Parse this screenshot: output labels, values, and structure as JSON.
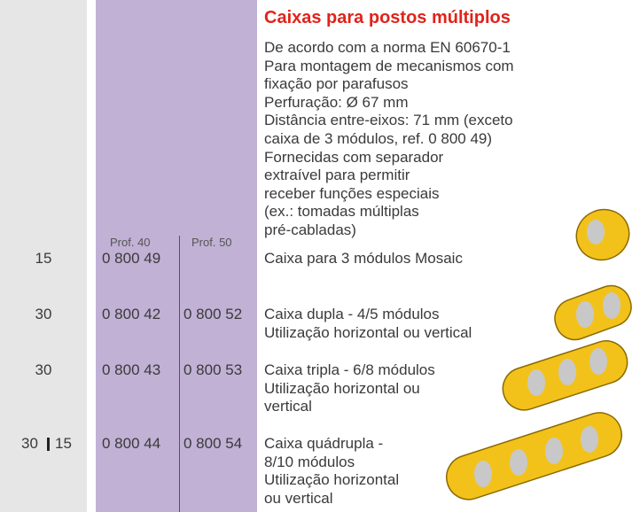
{
  "header": {
    "title": "Caixas para postos múltiplos"
  },
  "description": [
    "De acordo com a norma EN 60670-1",
    "Para montagem de mecanismos com",
    "fixação por parafusos",
    "Perfuração: Ø 67 mm",
    "Distância entre-eixos: 71 mm (exceto",
    "caixa de 3 módulos, ref. 0 800 49)",
    "Fornecidas com separador",
    "extraível para permitir",
    "receber funções especiais",
    "(ex.: tomadas múltiplas",
    "pré-cabladas)"
  ],
  "columns": [
    "Prof. 40",
    "Prof. 50"
  ],
  "rows": [
    {
      "qty": [
        "15"
      ],
      "ref40": "0 800 49",
      "ref50": null,
      "text": [
        "Caixa para 3 módulos Mosaic"
      ]
    },
    {
      "qty": [
        "30"
      ],
      "ref40": "0 800 42",
      "ref50": "0 800 52",
      "text": [
        "Caixa dupla - 4/5 módulos",
        "Utilização horizontal ou vertical"
      ]
    },
    {
      "qty": [
        "30"
      ],
      "ref40": "0 800 43",
      "ref50": "0 800 53",
      "text": [
        "Caixa tripla - 6/8 módulos",
        "Utilização horizontal ou",
        "vertical"
      ]
    },
    {
      "qty": [
        "30",
        "15"
      ],
      "ref40": "0 800 44",
      "ref50": "0 800 54",
      "text": [
        "Caixa quádrupla -",
        "8/10 módulos",
        "Utilização horizontal",
        "ou vertical"
      ]
    }
  ]
}
